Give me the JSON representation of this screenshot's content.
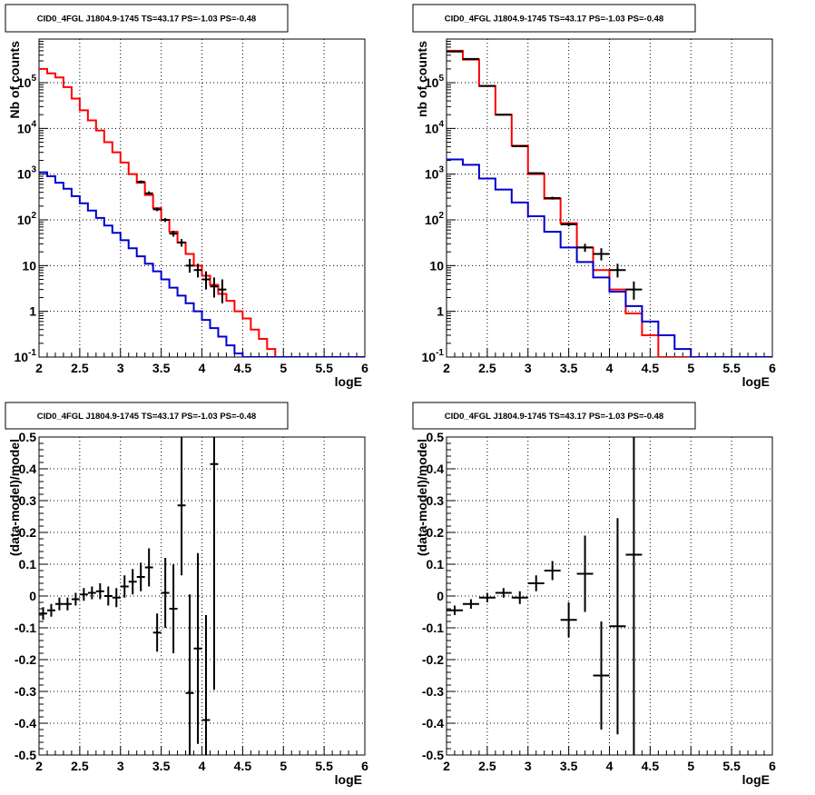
{
  "chart_data": [
    {
      "type": "line",
      "title": "CID0_4FGL J1804.9-1745 TS=43.17 PS=-1.03 PS=-0.48",
      "xlabel": "logE",
      "ylabel": "Nb of counts",
      "xlim": [
        2,
        6
      ],
      "ylim": [
        0.1,
        900000
      ],
      "yscale": "log",
      "grid": true,
      "x_ticks": [
        "2",
        "2.5",
        "3",
        "3.5",
        "4",
        "4.5",
        "5",
        "5.5",
        "6"
      ],
      "y_ticks": [
        {
          "value": 0.1,
          "base": "10",
          "exp": "-1"
        },
        {
          "value": 1,
          "base": "1",
          "exp": ""
        },
        {
          "value": 10,
          "base": "10",
          "exp": ""
        },
        {
          "value": 100,
          "base": "10",
          "exp": "2"
        },
        {
          "value": 1000,
          "base": "10",
          "exp": "3"
        },
        {
          "value": 10000,
          "base": "10",
          "exp": "4"
        },
        {
          "value": 100000,
          "base": "10",
          "exp": "5"
        }
      ],
      "series": [
        {
          "color": "#ff0000",
          "style": "hist",
          "edges": [
            2.0,
            2.1,
            2.2,
            2.3,
            2.4,
            2.5,
            2.6,
            2.7,
            2.8,
            2.9,
            3.0,
            3.1,
            3.2,
            3.3,
            3.4,
            3.5,
            3.6,
            3.7,
            3.8,
            3.9,
            4.0,
            4.1,
            4.2,
            4.3,
            4.4,
            4.5,
            4.6,
            4.7,
            4.8,
            4.9,
            5.0,
            5.1,
            5.2,
            5.3,
            5.4,
            5.5,
            5.6,
            5.7,
            5.8,
            5.9,
            6.0
          ],
          "values": [
            200000,
            160000,
            130000,
            80000,
            45000,
            25000,
            15000,
            9000,
            5000,
            3000,
            1800,
            1000,
            650,
            350,
            180,
            100,
            55,
            32,
            18,
            10,
            6,
            3.8,
            2.4,
            1.7,
            1.0,
            0.7,
            0.4,
            0.25,
            0.15,
            0.1,
            0.08,
            0.08,
            0.08,
            0.08,
            0.08,
            0.08,
            0.08,
            0.08,
            0.08,
            0.08
          ]
        },
        {
          "color": "#0000cc",
          "style": "hist",
          "edges": [
            2.0,
            2.1,
            2.2,
            2.3,
            2.4,
            2.5,
            2.6,
            2.7,
            2.8,
            2.9,
            3.0,
            3.1,
            3.2,
            3.3,
            3.4,
            3.5,
            3.6,
            3.7,
            3.8,
            3.9,
            4.0,
            4.1,
            4.2,
            4.3,
            4.4,
            4.5,
            4.6,
            4.7,
            4.8,
            4.9,
            5.0,
            5.1,
            5.2,
            5.3,
            5.4,
            5.5,
            5.6,
            5.7,
            5.8,
            5.9,
            6.0
          ],
          "values": [
            1100,
            900,
            650,
            480,
            330,
            230,
            160,
            110,
            75,
            52,
            36,
            24,
            16,
            11,
            7.5,
            5.0,
            3.3,
            2.2,
            1.5,
            1.0,
            0.65,
            0.43,
            0.28,
            0.18,
            0.12,
            0.1,
            0.1,
            0.1,
            0.1,
            0.1,
            0.1,
            0.1,
            0.1,
            0.1,
            0.1,
            0.1,
            0.1,
            0.1,
            0.1,
            0.1
          ]
        },
        {
          "color": "#000000",
          "style": "points",
          "x": [
            3.25,
            3.35,
            3.45,
            3.55,
            3.65,
            3.75,
            3.85,
            3.95,
            4.05,
            4.15,
            4.25
          ],
          "y": [
            680,
            380,
            170,
            100,
            50,
            32,
            10,
            8,
            5,
            3.5,
            3
          ],
          "xerr": 0.05,
          "yerr_lo": [
            640,
            360,
            155,
            90,
            43,
            26,
            7,
            5.5,
            3,
            2,
            1.5
          ],
          "yerr_hi": [
            730,
            420,
            185,
            110,
            58,
            38,
            14,
            11,
            7.5,
            5.5,
            5
          ]
        }
      ]
    },
    {
      "type": "line",
      "title": "CID0_4FGL J1804.9-1745 TS=43.17 PS=-1.03 PS=-0.48",
      "xlabel": "logE",
      "ylabel": "nb of counts",
      "xlim": [
        2,
        6
      ],
      "ylim": [
        0.1,
        900000
      ],
      "yscale": "log",
      "grid": true,
      "x_ticks": [
        "2",
        "2.5",
        "3",
        "3.5",
        "4",
        "4.5",
        "5",
        "5.5",
        "6"
      ],
      "y_ticks": [
        {
          "value": 0.1,
          "base": "10",
          "exp": "-1"
        },
        {
          "value": 1,
          "base": "1",
          "exp": ""
        },
        {
          "value": 10,
          "base": "10",
          "exp": ""
        },
        {
          "value": 100,
          "base": "10",
          "exp": "2"
        },
        {
          "value": 1000,
          "base": "10",
          "exp": "3"
        },
        {
          "value": 10000,
          "base": "10",
          "exp": "4"
        },
        {
          "value": 100000,
          "base": "10",
          "exp": "5"
        }
      ],
      "series": [
        {
          "color": "#ff0000",
          "style": "hist",
          "edges": [
            2.0,
            2.2,
            2.4,
            2.6,
            2.8,
            3.0,
            3.2,
            3.4,
            3.6,
            3.8,
            4.0,
            4.2,
            4.4,
            4.6,
            4.8,
            5.0,
            5.2,
            5.4,
            5.6,
            5.8,
            6.0
          ],
          "values": [
            500000,
            320000,
            85000,
            20000,
            4200,
            1000,
            290,
            85,
            25,
            8,
            3,
            0.9,
            0.3,
            0.1,
            0.1,
            0.1,
            0.1,
            0.1,
            0.1,
            0.1
          ]
        },
        {
          "color": "#0000cc",
          "style": "hist",
          "edges": [
            2.0,
            2.2,
            2.4,
            2.6,
            2.8,
            3.0,
            3.2,
            3.4,
            3.6,
            3.8,
            4.0,
            4.2,
            4.4,
            4.6,
            4.8,
            5.0,
            5.2,
            5.4,
            5.6,
            5.8,
            6.0
          ],
          "values": [
            2100,
            1600,
            800,
            460,
            240,
            120,
            55,
            25,
            12,
            5.5,
            2.7,
            1.3,
            0.6,
            0.3,
            0.15,
            0.1,
            0.1,
            0.1,
            0.1,
            0.1
          ]
        },
        {
          "color": "#000000",
          "style": "points",
          "x": [
            2.1,
            2.3,
            2.5,
            2.7,
            2.9,
            3.1,
            3.3,
            3.5,
            3.7,
            3.9,
            4.1,
            4.3
          ],
          "y": [
            480000,
            330000,
            85000,
            20000,
            4100,
            1050,
            300,
            80,
            25,
            18,
            8,
            3
          ],
          "xerr": 0.1,
          "yerr_lo": [
            470000,
            320000,
            83000,
            19500,
            3950,
            1000,
            280,
            72,
            20,
            13,
            5.5,
            1.8
          ],
          "yerr_hi": [
            490000,
            340000,
            87000,
            20500,
            4250,
            1100,
            320,
            88,
            30,
            24,
            11,
            4.5
          ]
        }
      ]
    },
    {
      "type": "scatter",
      "title": "CID0_4FGL J1804.9-1745 TS=43.17 PS=-1.03 PS=-0.48",
      "xlabel": "logE",
      "ylabel": "(data-model)/model",
      "xlim": [
        2,
        6
      ],
      "ylim": [
        -0.5,
        0.5
      ],
      "grid": true,
      "x_ticks": [
        "2",
        "2.5",
        "3",
        "3.5",
        "4",
        "4.5",
        "5",
        "5.5",
        "6"
      ],
      "y_ticks": [
        "-0.5",
        "-0.4",
        "-0.3",
        "-0.2",
        "-0.1",
        "0",
        "0.1",
        "0.2",
        "0.3",
        "0.4",
        "0.5"
      ],
      "series": [
        {
          "color": "#000000",
          "x": [
            2.05,
            2.15,
            2.25,
            2.35,
            2.45,
            2.55,
            2.65,
            2.75,
            2.85,
            2.95,
            3.05,
            3.15,
            3.25,
            3.35,
            3.45,
            3.55,
            3.65,
            3.75,
            3.85,
            3.95,
            4.05,
            4.15
          ],
          "y": [
            -0.055,
            -0.045,
            -0.025,
            -0.025,
            -0.01,
            0.005,
            0.01,
            0.015,
            0.0,
            -0.005,
            0.03,
            0.045,
            0.06,
            0.09,
            -0.115,
            0.01,
            -0.04,
            0.285,
            -0.305,
            -0.165,
            -0.39,
            0.415
          ],
          "xerr": 0.05,
          "yerr": [
            0.02,
            0.02,
            0.02,
            0.02,
            0.02,
            0.02,
            0.02,
            0.025,
            0.03,
            0.03,
            0.035,
            0.04,
            0.045,
            0.06,
            0.06,
            0.11,
            0.14,
            0.22,
            0.31,
            0.3,
            0.33,
            0.71
          ]
        }
      ]
    },
    {
      "type": "scatter",
      "title": "CID0_4FGL J1804.9-1745 TS=43.17 PS=-1.03 PS=-0.48",
      "xlabel": "logE",
      "ylabel": "(data-model)/model",
      "xlim": [
        2,
        6
      ],
      "ylim": [
        -0.5,
        0.5
      ],
      "grid": true,
      "x_ticks": [
        "2",
        "2.5",
        "3",
        "3.5",
        "4",
        "4.5",
        "5",
        "5.5",
        "6"
      ],
      "y_ticks": [
        "-0.5",
        "-0.4",
        "-0.3",
        "-0.2",
        "-0.1",
        "0",
        "0.1",
        "0.2",
        "0.3",
        "0.4",
        "0.5"
      ],
      "series": [
        {
          "color": "#000000",
          "x": [
            2.1,
            2.3,
            2.5,
            2.7,
            2.9,
            3.1,
            3.3,
            3.5,
            3.7,
            3.9,
            4.1,
            4.3
          ],
          "y": [
            -0.045,
            -0.025,
            -0.005,
            0.01,
            -0.005,
            0.04,
            0.08,
            -0.075,
            0.07,
            -0.25,
            -0.095,
            0.13
          ],
          "xerr": 0.1,
          "yerr": [
            0.015,
            0.015,
            0.015,
            0.015,
            0.02,
            0.025,
            0.03,
            0.055,
            0.12,
            0.17,
            0.34,
            0.63
          ]
        }
      ]
    }
  ]
}
